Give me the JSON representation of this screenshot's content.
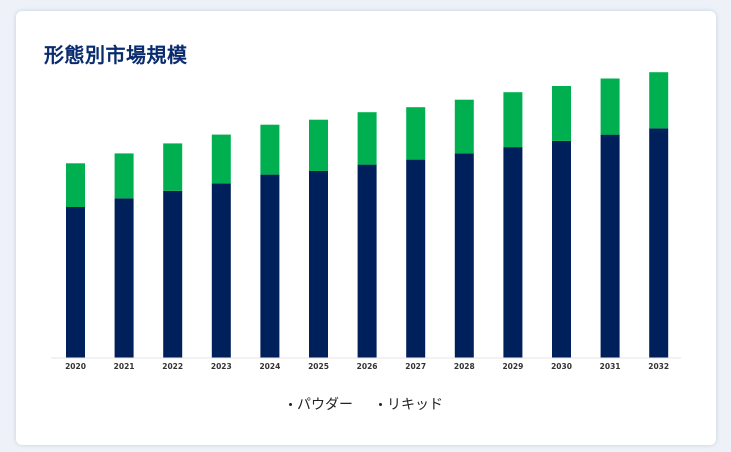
{
  "title": "形態別市場規模",
  "chart_data": {
    "type": "bar",
    "stacked": true,
    "title": "形態別市場規模",
    "xlabel": "",
    "ylabel": "",
    "categories": [
      "2020",
      "2021",
      "2022",
      "2023",
      "2024",
      "2025",
      "2026",
      "2027",
      "2028",
      "2029",
      "2030",
      "2031",
      "2032"
    ],
    "series": [
      {
        "name": "パウダー",
        "color": "#00205b",
        "values": [
          121,
          128,
          134,
          140,
          147,
          150,
          155,
          159,
          164,
          169,
          174,
          179,
          184
        ]
      },
      {
        "name": "リキッド",
        "color": "#00b050",
        "values": [
          35,
          36,
          38,
          39,
          40,
          41,
          42,
          42,
          43,
          44,
          44,
          45,
          45
        ]
      }
    ],
    "ylim": [
      0,
      230
    ],
    "grid": false,
    "legend_position": "bottom"
  }
}
